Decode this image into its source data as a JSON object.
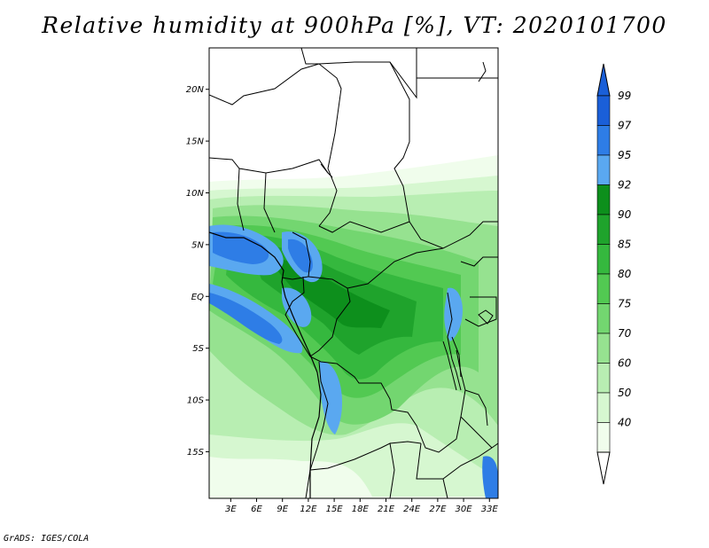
{
  "title": "Relative humidity at 900hPa [%], VT: 2020101700",
  "footer": "GrADS: IGES/COLA",
  "map": {
    "lat_range": [
      -19.5,
      24
    ],
    "lon_range": [
      0.5,
      34
    ],
    "lat_ticks": [
      {
        "value": 20,
        "label": "20N"
      },
      {
        "value": 15,
        "label": "15N"
      },
      {
        "value": 10,
        "label": "10N"
      },
      {
        "value": 5,
        "label": "5N"
      },
      {
        "value": 0,
        "label": "EQ"
      },
      {
        "value": -5,
        "label": "5S"
      },
      {
        "value": -10,
        "label": "10S"
      },
      {
        "value": -15,
        "label": "15S"
      }
    ],
    "lon_ticks": [
      {
        "value": 3,
        "label": "3E"
      },
      {
        "value": 6,
        "label": "6E"
      },
      {
        "value": 9,
        "label": "9E"
      },
      {
        "value": 12,
        "label": "12E"
      },
      {
        "value": 15,
        "label": "15E"
      },
      {
        "value": 18,
        "label": "18E"
      },
      {
        "value": 21,
        "label": "21E"
      },
      {
        "value": 24,
        "label": "24E"
      },
      {
        "value": 27,
        "label": "27E"
      },
      {
        "value": 30,
        "label": "30E"
      },
      {
        "value": 33,
        "label": "33E"
      }
    ]
  },
  "colorbar": {
    "labels": [
      "99",
      "97",
      "95",
      "92",
      "90",
      "85",
      "80",
      "75",
      "70",
      "60",
      "50",
      "40"
    ],
    "colors": [
      "#1a5fd8",
      "#2e7de6",
      "#5aa8f0",
      "#0d8f1c",
      "#1fa32c",
      "#35b83e",
      "#52c952",
      "#73d670",
      "#96e290",
      "#b8eeb2",
      "#d6f7d0",
      "#f0fdec"
    ]
  },
  "colors": {
    "frame": "#000000",
    "dry": "#ffffff"
  }
}
